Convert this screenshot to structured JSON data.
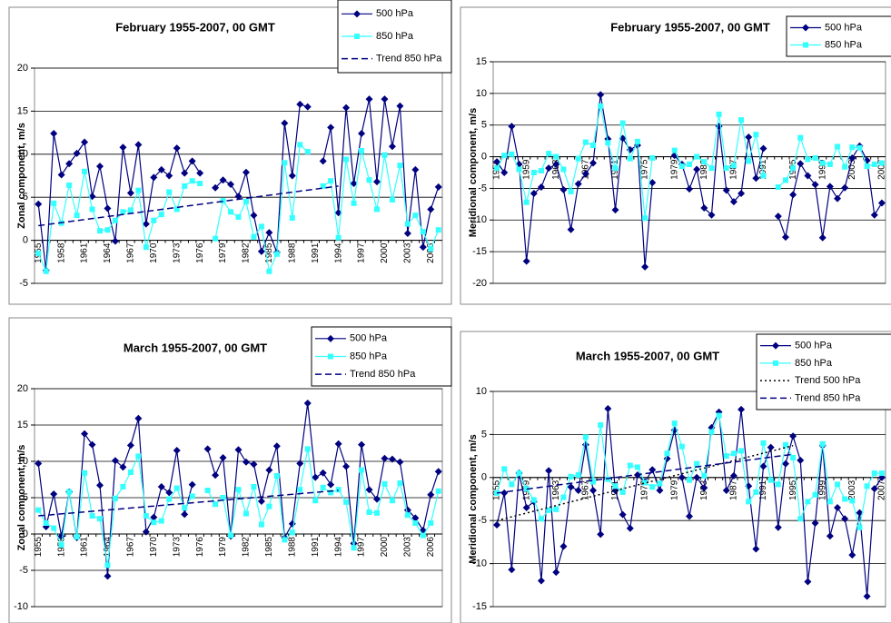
{
  "chart_data": [
    {
      "type": "line",
      "title": "February 1955-2007, 00 GMT",
      "ylabel": "Zonal component, m/s",
      "categories": [
        "1955",
        null,
        null,
        "1958",
        null,
        null,
        "1961",
        null,
        null,
        "1964",
        null,
        null,
        "1967",
        null,
        null,
        "1970",
        null,
        null,
        "1973",
        null,
        null,
        "1976",
        null,
        null,
        "1979",
        null,
        null,
        "1982",
        null,
        null,
        "1985",
        null,
        null,
        "1988",
        null,
        null,
        "1991",
        null,
        null,
        "1994",
        null,
        null,
        "1997",
        null,
        null,
        "2000",
        null,
        null,
        "2003",
        null,
        null,
        "2006",
        null
      ],
      "ylim": [
        -5,
        20
      ],
      "yticks": [
        -5,
        0,
        5,
        10,
        15,
        20
      ],
      "grid": true,
      "series": [
        {
          "name": "500 hPa",
          "color": "#000080",
          "marker": "diamond",
          "values": [
            4.2,
            -3.5,
            12.4,
            7.6,
            8.9,
            10.1,
            11.4,
            5.1,
            8.6,
            3.7,
            -0.1,
            10.8,
            5.5,
            11.1,
            1.9,
            7.3,
            8.2,
            7.5,
            10.7,
            7.8,
            9.2,
            7.8,
            null,
            6.1,
            7.0,
            6.5,
            5.1,
            7.9,
            2.9,
            -1.3,
            0.9,
            -1.4,
            13.6,
            7.5,
            15.8,
            15.5,
            null,
            9.2,
            13.1,
            3.2,
            15.4,
            6.6,
            12.4,
            16.4,
            6.8,
            16.4,
            10.9,
            15.6,
            0.8,
            8.2,
            -0.8,
            3.6,
            6.2
          ]
        },
        {
          "name": "850 hPa",
          "color": "#33ffff",
          "marker": "square",
          "values": [
            -1.5,
            -3.6,
            4.3,
            2.0,
            6.4,
            2.9,
            8.0,
            3.6,
            1.1,
            1.2,
            2.3,
            3.3,
            3.5,
            5.8,
            -0.8,
            2.3,
            3.0,
            5.6,
            3.6,
            6.3,
            6.9,
            6.6,
            null,
            0.2,
            4.6,
            3.3,
            2.7,
            4.5,
            0.4,
            1.6,
            -3.6,
            -1.6,
            9.0,
            2.6,
            11.1,
            10.3,
            null,
            6.3,
            6.9,
            0.3,
            9.4,
            4.3,
            10.4,
            7.0,
            3.6,
            9.9,
            4.7,
            8.7,
            1.9,
            2.9,
            1.0,
            -1.0,
            1.2
          ]
        }
      ],
      "trends": [
        {
          "name": "Trend 850 hPa",
          "color": "#000080",
          "dash": "7,4",
          "x": [
            "1955",
            "1994"
          ],
          "values": [
            1.7,
            6.3
          ]
        }
      ]
    },
    {
      "type": "line",
      "title": "February 1955-2007, 00 GMT",
      "ylabel": "Meridional component, m/s",
      "categories": [
        "1955",
        null,
        null,
        null,
        "1959",
        null,
        null,
        null,
        "1963",
        null,
        null,
        null,
        "1967",
        null,
        null,
        null,
        "1971",
        null,
        null,
        null,
        "1975",
        null,
        null,
        null,
        "1979",
        null,
        null,
        null,
        "1983",
        null,
        null,
        null,
        "1987",
        null,
        null,
        null,
        "1991",
        null,
        null,
        null,
        "1995",
        null,
        null,
        null,
        "1999",
        null,
        null,
        null,
        "2003",
        null,
        null,
        null,
        "2007"
      ],
      "ylim": [
        -20,
        15
      ],
      "yticks": [
        -20,
        -15,
        -10,
        -5,
        0,
        5,
        10,
        15
      ],
      "grid": true,
      "series": [
        {
          "name": "500 hPa",
          "color": "#000080",
          "marker": "diamond",
          "values": [
            -0.8,
            -2.5,
            4.8,
            -1.2,
            -16.5,
            -5.8,
            -4.8,
            -1.8,
            -1.2,
            -5.2,
            -11.5,
            -4.3,
            -2.7,
            -1.0,
            9.8,
            2.8,
            -8.4,
            2.9,
            1.1,
            1.8,
            -17.4,
            -4.1,
            null,
            null,
            0.2,
            -1.2,
            -5.1,
            -2.0,
            -8.1,
            -9.2,
            4.8,
            -5.3,
            -7.1,
            -5.8,
            3.1,
            -3.4,
            1.3,
            null,
            -9.4,
            -12.7,
            -6.0,
            -1.1,
            -3.0,
            -4.4,
            -12.8,
            -4.7,
            -6.6,
            -4.9,
            -0.2,
            1.7,
            -0.6,
            -9.2,
            -7.3
          ]
        },
        {
          "name": "850 hPa",
          "color": "#33ffff",
          "marker": "square",
          "values": [
            -1.8,
            0.2,
            0.4,
            -2.0,
            -7.2,
            -2.5,
            -2.2,
            0.5,
            0.0,
            -2.0,
            -5.5,
            -0.3,
            2.3,
            1.8,
            8.0,
            2.2,
            -1.8,
            5.3,
            -0.3,
            2.4,
            -9.7,
            -0.2,
            null,
            null,
            1.0,
            -1.5,
            -1.2,
            0.0,
            -0.8,
            -1.8,
            6.7,
            -1.8,
            -1.4,
            5.8,
            -0.7,
            3.5,
            -3.0,
            null,
            -4.8,
            -3.7,
            -1.8,
            3.0,
            -0.4,
            -0.2,
            -1.0,
            -1.2,
            1.6,
            -1.6,
            1.5,
            1.4,
            -1.5,
            -1.2,
            -1.0
          ]
        }
      ],
      "trends": []
    },
    {
      "type": "line",
      "title": "March 1955-2007, 00 GMT",
      "ylabel": "Zonal component, m/s",
      "categories": [
        "1955",
        null,
        null,
        "1958",
        null,
        null,
        "1961",
        null,
        null,
        "1964",
        null,
        null,
        "1967",
        null,
        null,
        "1970",
        null,
        null,
        "1973",
        null,
        null,
        "1976",
        null,
        null,
        "1979",
        null,
        null,
        "1982",
        null,
        null,
        "1985",
        null,
        null,
        "1988",
        null,
        null,
        "1991",
        null,
        null,
        "1994",
        null,
        null,
        "1997",
        null,
        null,
        "2000",
        null,
        null,
        "2003",
        null,
        null,
        "2006",
        null
      ],
      "ylim": [
        -10,
        20
      ],
      "yticks": [
        -10,
        -5,
        0,
        5,
        10,
        15,
        20
      ],
      "grid": true,
      "series": [
        {
          "name": "500 hPa",
          "color": "#000080",
          "marker": "diamond",
          "values": [
            9.7,
            1.0,
            5.5,
            -0.3,
            5.8,
            -0.5,
            13.8,
            12.3,
            6.7,
            -5.8,
            10.1,
            9.2,
            12.2,
            15.9,
            0.3,
            2.3,
            6.5,
            5.7,
            11.5,
            2.7,
            6.8,
            null,
            11.7,
            8.1,
            10.5,
            -0.3,
            11.6,
            9.9,
            9.6,
            4.5,
            8.8,
            12.1,
            -0.5,
            1.4,
            9.7,
            18.0,
            7.8,
            8.4,
            6.8,
            12.4,
            9.3,
            -1.3,
            12.3,
            6.1,
            4.8,
            10.4,
            10.3,
            9.9,
            3.3,
            2.2,
            0.5,
            5.4,
            8.6
          ]
        },
        {
          "name": "850 hPa",
          "color": "#33ffff",
          "marker": "square",
          "values": [
            3.3,
            1.5,
            0.8,
            -1.5,
            5.8,
            -0.4,
            8.4,
            2.5,
            2.1,
            -4.3,
            4.9,
            6.5,
            8.5,
            10.7,
            2.5,
            1.6,
            1.8,
            4.8,
            6.3,
            3.6,
            5.2,
            null,
            6.0,
            4.1,
            5.0,
            -0.2,
            6.1,
            2.8,
            6.5,
            1.3,
            3.8,
            8.0,
            -0.8,
            0.2,
            6.1,
            11.7,
            4.6,
            6.4,
            5.7,
            6.1,
            4.4,
            -1.9,
            8.8,
            3.0,
            2.9,
            6.9,
            4.6,
            7.0,
            2.6,
            1.5,
            -0.2,
            1.5,
            5.9
          ]
        }
      ],
      "trends": [
        {
          "name": "Trend 850 hPa",
          "color": "#000080",
          "dash": "7,4",
          "x": [
            "1955",
            "1994"
          ],
          "values": [
            2.5,
            6.0
          ]
        }
      ]
    },
    {
      "type": "line",
      "title": "March 1955-2007, 00 GMT",
      "ylabel": "Meridional component, m/s",
      "categories": [
        "1955",
        null,
        null,
        null,
        "1959",
        null,
        null,
        null,
        "1963",
        null,
        null,
        null,
        "1967",
        null,
        null,
        null,
        "1971",
        null,
        null,
        null,
        "1975",
        null,
        null,
        null,
        "1979",
        null,
        null,
        null,
        "1983",
        null,
        null,
        null,
        "1987",
        null,
        null,
        null,
        "1991",
        null,
        null,
        null,
        "1995",
        null,
        null,
        null,
        "1999",
        null,
        null,
        null,
        "2003",
        null,
        null,
        null,
        "2007"
      ],
      "ylim": [
        -15,
        10
      ],
      "yticks": [
        -15,
        -10,
        -5,
        0,
        5,
        10
      ],
      "grid": true,
      "series": [
        {
          "name": "500 hPa",
          "color": "#000080",
          "marker": "diamond",
          "values": [
            -5.5,
            -1.8,
            -10.7,
            0.5,
            -3.5,
            -2.8,
            -12.0,
            0.8,
            -11.0,
            -8.0,
            -1.1,
            -1.5,
            3.8,
            -1.5,
            -6.6,
            8.0,
            -1.5,
            -4.3,
            -5.9,
            0.3,
            -0.5,
            0.9,
            -1.5,
            2.2,
            5.5,
            0.0,
            -4.5,
            0.0,
            -1.2,
            5.8,
            7.6,
            -1.5,
            0.2,
            7.9,
            -1.0,
            -8.3,
            1.3,
            3.5,
            -5.8,
            1.6,
            4.8,
            2.0,
            -12.1,
            -5.3,
            3.7,
            -6.8,
            -3.5,
            -4.8,
            -9.0,
            -4.1,
            -13.8,
            -1.3,
            0.0
          ]
        },
        {
          "name": "850 hPa",
          "color": "#33ffff",
          "marker": "square",
          "values": [
            -1.8,
            1.0,
            -0.8,
            0.5,
            -1.3,
            -2.6,
            -4.8,
            -3.8,
            -3.7,
            -2.3,
            0.1,
            0.3,
            4.7,
            -0.5,
            6.1,
            -0.2,
            -1.0,
            -1.7,
            1.4,
            1.2,
            -0.6,
            -1.1,
            -0.7,
            2.8,
            6.3,
            3.6,
            -0.3,
            1.6,
            0.2,
            5.3,
            7.2,
            2.5,
            2.8,
            3.1,
            -2.8,
            -1.7,
            4.0,
            -0.3,
            -0.8,
            3.8,
            2.3,
            -4.8,
            -2.8,
            -2.0,
            3.9,
            -2.8,
            -0.8,
            -2.5,
            -2.7,
            -5.8,
            -1.0,
            0.5,
            0.5
          ]
        }
      ],
      "trends": [
        {
          "name": "Trend 500 hPa",
          "color": "#000000",
          "dash": "2,3",
          "x": [
            "1955",
            "1995"
          ],
          "values": [
            -5.0,
            3.7
          ]
        },
        {
          "name": "Trend 850 hPa",
          "color": "#000080",
          "dash": "7,4",
          "x": [
            "1955",
            "1995"
          ],
          "values": [
            -1.8,
            2.7
          ]
        }
      ]
    }
  ]
}
